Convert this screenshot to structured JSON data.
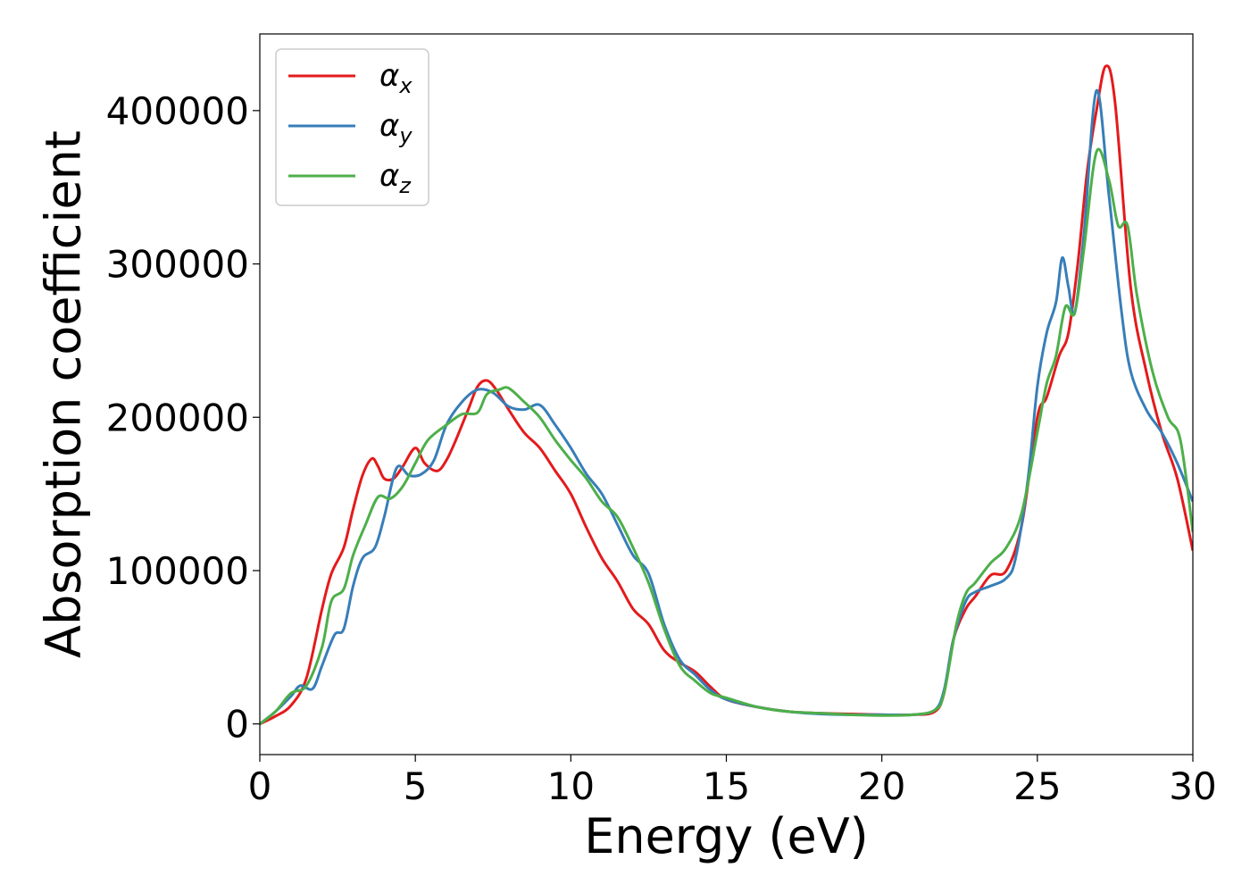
{
  "chart_data": {
    "type": "line",
    "xlabel": "Energy (eV)",
    "ylabel": "Absorption coefficient",
    "xlim": [
      0,
      30
    ],
    "ylim": [
      -20000,
      450000
    ],
    "xticks": [
      0,
      5,
      10,
      15,
      20,
      25,
      30
    ],
    "xtick_labels": [
      "0",
      "5",
      "10",
      "15",
      "20",
      "25",
      "30"
    ],
    "yticks": [
      0,
      100000,
      200000,
      300000,
      400000
    ],
    "ytick_labels": [
      "0",
      "100000",
      "200000",
      "300000",
      "400000"
    ],
    "grid": false,
    "legend_position": "top-left",
    "series": [
      {
        "name": "αx",
        "symbol": "α",
        "subscript": "x",
        "color": "#e41a1c",
        "x": [
          0,
          0.5,
          1,
          1.5,
          2,
          2.3,
          2.7,
          3,
          3.3,
          3.6,
          3.8,
          4,
          4.3,
          4.6,
          5,
          5.3,
          5.7,
          6,
          6.3,
          6.7,
          7,
          7.3,
          7.6,
          8,
          8.5,
          9,
          9.5,
          10,
          10.5,
          11,
          11.5,
          12,
          12.5,
          13,
          13.5,
          14,
          14.5,
          15,
          16,
          17,
          18,
          19,
          20,
          21,
          21.7,
          22,
          22.3,
          22.7,
          23,
          23.5,
          24,
          24.5,
          25,
          25.3,
          25.7,
          26,
          26.3,
          26.6,
          26.9,
          27.2,
          27.5,
          28,
          28.5,
          29,
          29.5,
          30
        ],
        "y": [
          0,
          5000,
          12000,
          30000,
          75000,
          98000,
          115000,
          140000,
          162000,
          173000,
          168000,
          160000,
          160000,
          168000,
          180000,
          170000,
          165000,
          172000,
          185000,
          205000,
          220000,
          224000,
          218000,
          205000,
          190000,
          180000,
          165000,
          150000,
          128000,
          108000,
          93000,
          75000,
          65000,
          48000,
          40000,
          34000,
          24000,
          16000,
          11000,
          8000,
          7000,
          6500,
          6000,
          6000,
          8000,
          20000,
          55000,
          75000,
          83000,
          97000,
          100000,
          130000,
          200000,
          213000,
          240000,
          255000,
          300000,
          360000,
          400000,
          429000,
          405000,
          285000,
          230000,
          190000,
          160000,
          113000
        ]
      },
      {
        "name": "αy",
        "symbol": "α",
        "subscript": "y",
        "color": "#377eb8",
        "x": [
          0,
          0.5,
          1,
          1.3,
          1.7,
          2,
          2.4,
          2.7,
          3,
          3.3,
          3.7,
          4,
          4.4,
          4.8,
          5.2,
          5.6,
          6,
          6.5,
          7,
          7.5,
          8,
          8.5,
          9,
          9.5,
          10,
          10.5,
          11,
          11.5,
          12,
          12.5,
          13,
          13.5,
          14,
          14.5,
          15,
          16,
          17,
          18,
          19,
          20,
          21,
          21.7,
          22,
          22.3,
          22.7,
          23,
          23.5,
          24,
          24.3,
          24.7,
          25,
          25.3,
          25.6,
          25.8,
          26,
          26.2,
          26.5,
          26.9,
          27.3,
          27.7,
          28,
          28.5,
          29,
          29.5,
          30
        ],
        "y": [
          0,
          8000,
          18000,
          25000,
          23000,
          38000,
          58000,
          62000,
          90000,
          108000,
          115000,
          135000,
          167000,
          162000,
          163000,
          172000,
          195000,
          210000,
          218000,
          216000,
          207000,
          205000,
          208000,
          195000,
          180000,
          163000,
          150000,
          130000,
          110000,
          98000,
          65000,
          42000,
          32000,
          22000,
          16000,
          11000,
          8000,
          6500,
          6000,
          6000,
          6000,
          9000,
          22000,
          55000,
          80000,
          86000,
          90000,
          95000,
          108000,
          160000,
          220000,
          255000,
          275000,
          304000,
          285000,
          268000,
          320000,
          413000,
          345000,
          270000,
          230000,
          205000,
          190000,
          170000,
          145000
        ]
      },
      {
        "name": "αz",
        "symbol": "α",
        "subscript": "z",
        "color": "#4daf4a",
        "x": [
          0,
          0.5,
          1,
          1.5,
          2,
          2.3,
          2.7,
          3,
          3.4,
          3.8,
          4.2,
          4.6,
          5,
          5.4,
          6,
          6.5,
          7,
          7.3,
          7.7,
          8,
          8.5,
          9,
          9.5,
          10,
          10.5,
          11,
          11.5,
          12,
          12.5,
          13,
          13.5,
          14,
          14.5,
          15,
          16,
          17,
          18,
          19,
          20,
          21,
          21.7,
          22,
          22.4,
          22.7,
          23,
          23.5,
          24,
          24.5,
          25,
          25.3,
          25.6,
          25.9,
          26.2,
          26.5,
          26.9,
          27.3,
          27.6,
          27.9,
          28.2,
          28.7,
          29.2,
          29.6,
          30
        ],
        "y": [
          0,
          8000,
          20000,
          25000,
          50000,
          80000,
          88000,
          110000,
          130000,
          148000,
          147000,
          155000,
          170000,
          185000,
          195000,
          202000,
          203000,
          215000,
          218000,
          219000,
          210000,
          200000,
          185000,
          172000,
          160000,
          145000,
          135000,
          115000,
          92000,
          62000,
          38000,
          28000,
          20000,
          17000,
          11000,
          8000,
          7000,
          6000,
          5500,
          6000,
          9000,
          20000,
          65000,
          85000,
          92000,
          105000,
          115000,
          138000,
          190000,
          222000,
          240000,
          272000,
          268000,
          310000,
          373000,
          355000,
          325000,
          325000,
          280000,
          230000,
          200000,
          185000,
          125000
        ]
      }
    ]
  }
}
